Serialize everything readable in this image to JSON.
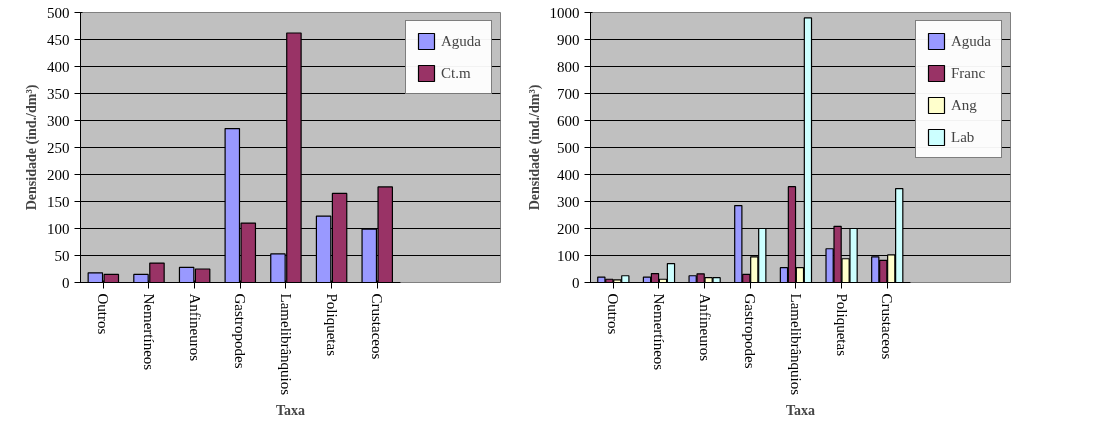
{
  "chart_data": [
    {
      "type": "bar",
      "xlabel": "Taxa",
      "ylabel": "Densidade (ind./dm³)",
      "categories": [
        "Outros",
        "Nemertíneos",
        "Anfineuros",
        "Gastropodes",
        "Lamelibrânquios",
        "Poliquetas",
        "Crustaceos"
      ],
      "series": [
        {
          "name": "Aguda",
          "color": "#9999ff",
          "values": [
            18,
            15,
            28,
            285,
            53,
            123,
            99
          ]
        },
        {
          "name": "Ct.m",
          "color": "#993366",
          "values": [
            15,
            36,
            25,
            110,
            462,
            165,
            177
          ]
        }
      ],
      "ylim": [
        0,
        500
      ],
      "yticks": [
        0,
        50,
        100,
        150,
        200,
        250,
        300,
        350,
        400,
        450,
        500
      ],
      "grid": "y",
      "legend": "right"
    },
    {
      "type": "bar",
      "xlabel": "Taxa",
      "ylabel": "Densidade (ind./dm³)",
      "categories": [
        "Outros",
        "Nemertíneos",
        "Anfineuros",
        "Gastropodes",
        "Lamelibrânquios",
        "Poliquetas",
        "Crustaceos"
      ],
      "series": [
        {
          "name": "Aguda",
          "color": "#9999ff",
          "values": [
            20,
            20,
            25,
            285,
            55,
            125,
            95
          ]
        },
        {
          "name": "Franc",
          "color": "#993366",
          "values": [
            12,
            33,
            32,
            30,
            355,
            208,
            82
          ]
        },
        {
          "name": "Ang",
          "color": "#ffffcc",
          "values": [
            10,
            12,
            18,
            95,
            55,
            88,
            102
          ]
        },
        {
          "name": "Lab",
          "color": "#ccffff",
          "values": [
            25,
            70,
            18,
            200,
            980,
            200,
            348
          ]
        }
      ],
      "ylim": [
        0,
        1000
      ],
      "yticks": [
        0,
        100,
        200,
        300,
        400,
        500,
        600,
        700,
        800,
        900,
        1000
      ],
      "grid": "y",
      "legend": "right"
    }
  ]
}
